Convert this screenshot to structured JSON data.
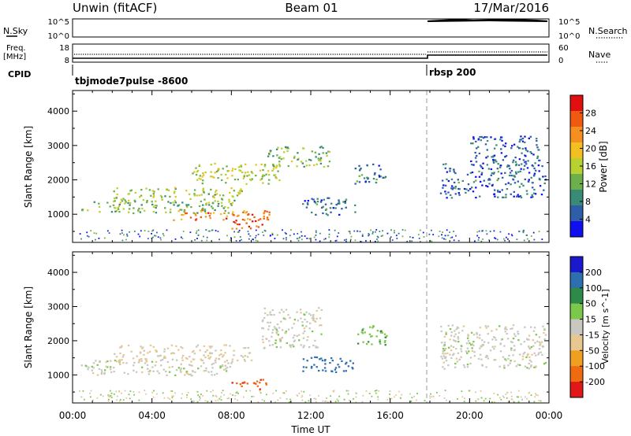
{
  "header": {
    "station": "Unwin (fitACF)",
    "beam": "Beam 01",
    "date": "17/Mar/2016"
  },
  "sky_panel": {
    "left_label": "N.Sky",
    "right_label": "N.Search",
    "left_ticks": [
      "10^5",
      "10^0"
    ],
    "right_ticks": [
      "10^5",
      "10^0"
    ]
  },
  "freq_panel": {
    "left_label_1": "Freq.",
    "left_label_2": "[MHz]",
    "right_label": "Nave",
    "left_ticks": [
      "18",
      "8"
    ],
    "right_ticks": [
      "60",
      "0"
    ]
  },
  "cpid_panel": {
    "label": "CPID",
    "mode_1": "tbjmode7pulse -8600",
    "mode_2": "rbsp 200"
  },
  "x_axis": {
    "ticks": [
      "00:00",
      "04:00",
      "08:00",
      "12:00",
      "16:00",
      "20:00",
      "00:00"
    ],
    "label": "Time UT"
  },
  "colors": {
    "power_scale": [
      "#1010ee",
      "#2f5ea8",
      "#3a8a78",
      "#6bb04a",
      "#b8d030",
      "#f2c020",
      "#f59020",
      "#f05a10",
      "#e01010"
    ],
    "velocity_scale": [
      "#1a1acc",
      "#2e6fb0",
      "#2e8a4a",
      "#7cc84a",
      "#c8c8c0",
      "#e8c890",
      "#f0a020",
      "#f06a10",
      "#e01818"
    ]
  },
  "chart_data": [
    {
      "type": "heatmap",
      "title": "",
      "xlabel": "Time UT",
      "ylabel": "Slant Range [km]",
      "xlim": [
        0,
        24
      ],
      "ylim": [
        180,
        4600
      ],
      "x_ticks": [
        "00:00",
        "04:00",
        "08:00",
        "12:00",
        "16:00",
        "20:00",
        "00:00"
      ],
      "y_ticks": [
        1000,
        2000,
        3000,
        4000
      ],
      "colorbar": {
        "label": "Power [dB]",
        "ticks": [
          4,
          8,
          12,
          16,
          20,
          24,
          28
        ],
        "range": [
          0,
          32
        ]
      },
      "regions": [
        {
          "t": [
            0.4,
            8.0
          ],
          "r": [
            1050,
            1400
          ],
          "level": 12
        },
        {
          "t": [
            2.0,
            8.5
          ],
          "r": [
            1350,
            1800
          ],
          "level": 15
        },
        {
          "t": [
            5.0,
            10.2
          ],
          "r": [
            850,
            1150
          ],
          "level": 24
        },
        {
          "t": [
            8.0,
            9.8
          ],
          "r": [
            600,
            900
          ],
          "level": 28
        },
        {
          "t": [
            6.0,
            10.5
          ],
          "r": [
            1900,
            2500
          ],
          "level": 16
        },
        {
          "t": [
            9.8,
            13.0
          ],
          "r": [
            2400,
            3000
          ],
          "level": 13
        },
        {
          "t": [
            11.5,
            14.2
          ],
          "r": [
            1000,
            1500
          ],
          "level": 7
        },
        {
          "t": [
            14.2,
            15.8
          ],
          "r": [
            1900,
            2500
          ],
          "level": 8
        },
        {
          "t": [
            18.5,
            23.8
          ],
          "r": [
            1500,
            2500
          ],
          "level": 6
        },
        {
          "t": [
            20.0,
            23.5
          ],
          "r": [
            2500,
            3300
          ],
          "level": 5
        }
      ]
    },
    {
      "type": "heatmap",
      "title": "",
      "xlabel": "Time UT",
      "ylabel": "Slant Range [km]",
      "xlim": [
        0,
        24
      ],
      "ylim": [
        180,
        4600
      ],
      "x_ticks": [
        "00:00",
        "04:00",
        "08:00",
        "12:00",
        "16:00",
        "20:00",
        "00:00"
      ],
      "y_ticks": [
        1000,
        2000,
        3000,
        4000
      ],
      "colorbar": {
        "label": "Velocity [m s^-1]",
        "ticks": [
          200,
          100,
          50,
          15,
          -15,
          -50,
          -100,
          -200
        ]
      },
      "regions": [
        {
          "t": [
            0.4,
            8.0
          ],
          "r": [
            1000,
            1450
          ],
          "level": 0
        },
        {
          "t": [
            2.0,
            9.0
          ],
          "r": [
            1400,
            1900
          ],
          "level": -20
        },
        {
          "t": [
            8.0,
            9.8
          ],
          "r": [
            600,
            900
          ],
          "level": -200
        },
        {
          "t": [
            9.5,
            12.5
          ],
          "r": [
            1800,
            3000
          ],
          "level": 0
        },
        {
          "t": [
            11.5,
            14.2
          ],
          "r": [
            1100,
            1550
          ],
          "level": 150
        },
        {
          "t": [
            14.2,
            15.8
          ],
          "r": [
            1900,
            2500
          ],
          "level": 40
        },
        {
          "t": [
            18.5,
            23.8
          ],
          "r": [
            1200,
            2500
          ],
          "level": 0
        }
      ]
    }
  ]
}
